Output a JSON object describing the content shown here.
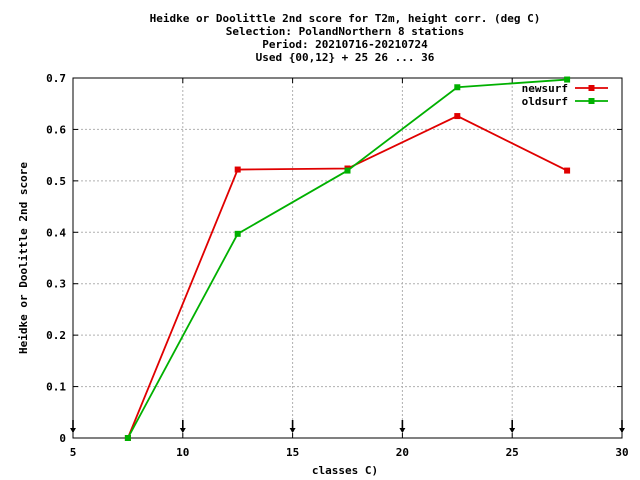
{
  "chart_data": {
    "type": "line",
    "title_lines": [
      "Heidke or Doolittle 2nd score  for T2m, height corr. (deg C)",
      "Selection: PolandNorthern      8 stations",
      "Period: 20210716-20210724",
      "Used {00,12} + 25 26 ... 36"
    ],
    "xlabel": "classes C)",
    "ylabel": "Heidke or Doolittle 2nd score",
    "xlim": [
      5,
      30
    ],
    "ylim": [
      0,
      0.7
    ],
    "x_ticks": [
      5,
      10,
      15,
      20,
      25,
      30
    ],
    "x_tick_labels": [
      "5",
      "10",
      "15",
      "20",
      "25",
      "30"
    ],
    "y_ticks": [
      0,
      0.1,
      0.2,
      0.3,
      0.4,
      0.5,
      0.6,
      0.7
    ],
    "y_tick_labels": [
      "0",
      "0.1",
      "0.2",
      "0.3",
      "0.4",
      "0.5",
      "0.6",
      "0.7"
    ],
    "grid": true,
    "legend_position": "top-right",
    "bottom_markers_x": [
      5,
      10,
      15,
      20,
      25,
      30
    ],
    "series": [
      {
        "name": "newsurf",
        "color": "#e00000",
        "x": [
          7.5,
          12.5,
          17.5,
          22.5,
          27.5
        ],
        "y": [
          0.0,
          0.522,
          0.524,
          0.626,
          0.52
        ]
      },
      {
        "name": "oldsurf",
        "color": "#00b000",
        "x": [
          7.5,
          12.5,
          17.5,
          22.5,
          27.5
        ],
        "y": [
          0.0,
          0.397,
          0.52,
          0.682,
          0.697
        ]
      }
    ]
  }
}
